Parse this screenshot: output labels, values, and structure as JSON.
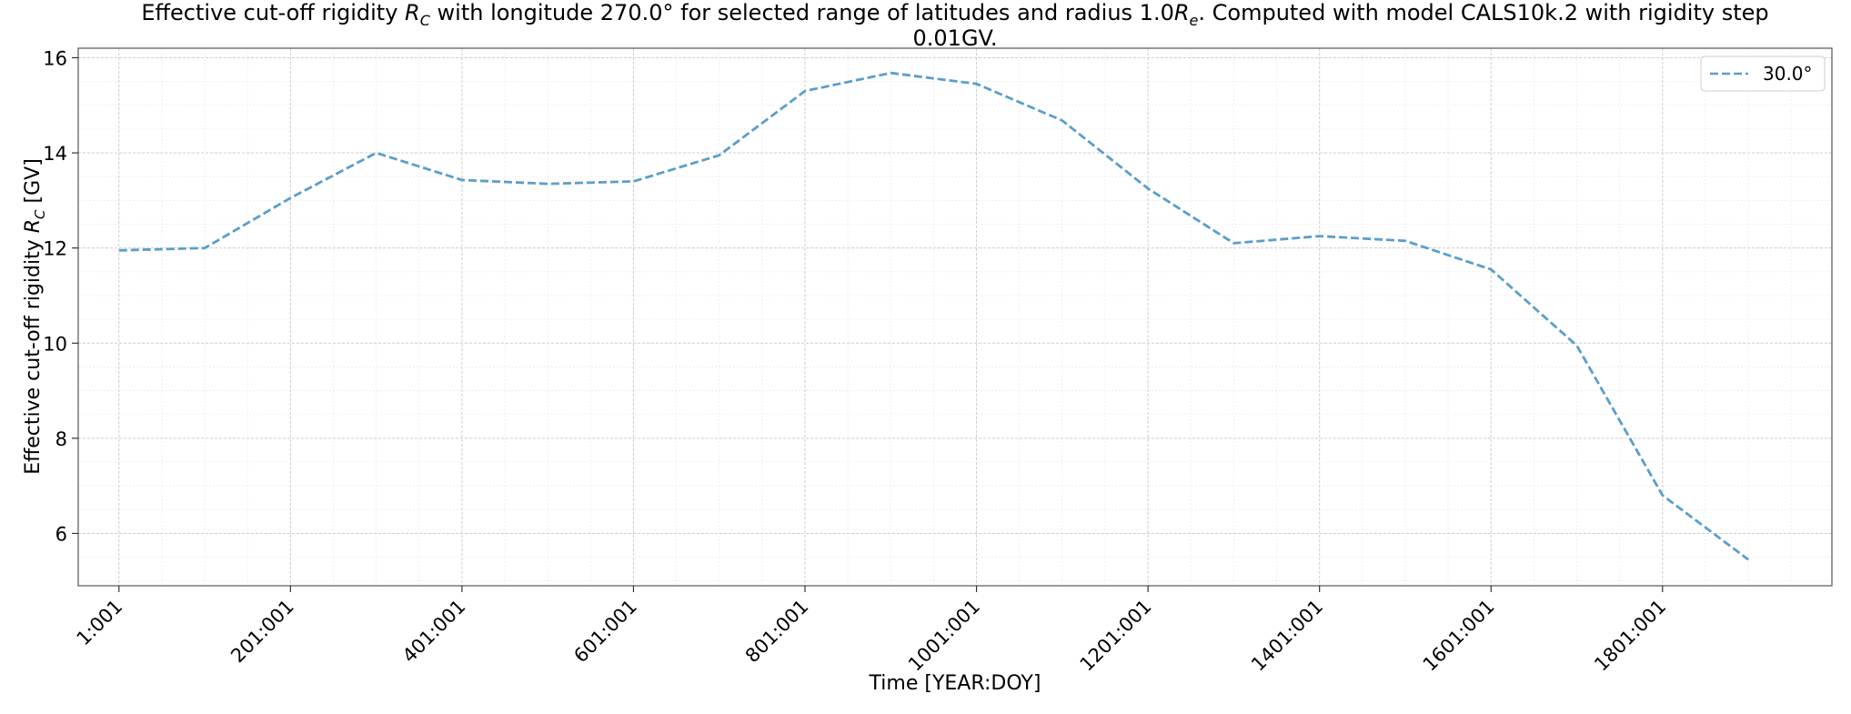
{
  "chart_data": {
    "type": "line",
    "title_line1_a": "Effective cut-off rigidity ",
    "title_line1_b": " with longitude 270.0° for selected range of latitudes and radius 1.0",
    "title_line1_c": ". Computed with model CALS10k.2 with rigidity step",
    "title_line2": "0.01GV.",
    "xlabel": "Time [YEAR:DOY]",
    "ylabel_a": "Effective cut-off rigidity ",
    "ylabel_b": " [GV]",
    "ylim": [
      4.9,
      16.2
    ],
    "xlim": [
      -47.5,
      1997.5
    ],
    "yticks": [
      6,
      8,
      10,
      12,
      14,
      16
    ],
    "xticks": [
      {
        "value": 0,
        "label": "1:001"
      },
      {
        "value": 200,
        "label": "201:001"
      },
      {
        "value": 400,
        "label": "401:001"
      },
      {
        "value": 600,
        "label": "601:001"
      },
      {
        "value": 800,
        "label": "801:001"
      },
      {
        "value": 1000,
        "label": "1001:001"
      },
      {
        "value": 1200,
        "label": "1201:001"
      },
      {
        "value": 1400,
        "label": "1401:001"
      },
      {
        "value": 1600,
        "label": "1601:001"
      },
      {
        "value": 1800,
        "label": "1801:001"
      }
    ],
    "grid": true,
    "legend_position": "top-right",
    "series": [
      {
        "name": "30.0°",
        "color": "#5a9ecb",
        "style": "dashed",
        "x": [
          0,
          100,
          200,
          300,
          400,
          500,
          600,
          700,
          800,
          900,
          1000,
          1100,
          1200,
          1300,
          1400,
          1500,
          1600,
          1700,
          1800,
          1900
        ],
        "y": [
          11.95,
          12.0,
          13.05,
          14.0,
          13.43,
          13.35,
          13.4,
          13.95,
          15.3,
          15.68,
          15.45,
          14.68,
          13.25,
          12.1,
          12.25,
          12.15,
          11.55,
          9.95,
          6.8,
          5.45
        ]
      }
    ]
  }
}
